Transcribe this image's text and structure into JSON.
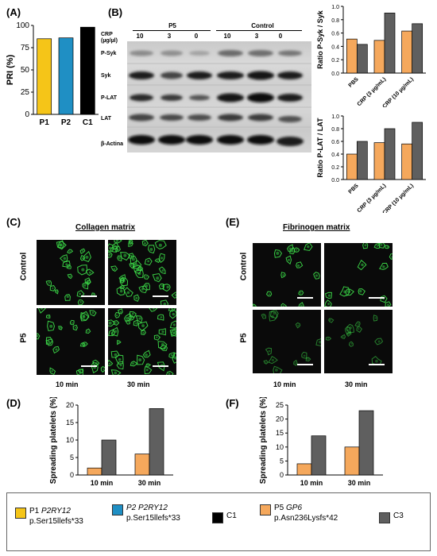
{
  "panels": {
    "A": "(A)",
    "B": "(B)",
    "C": "(C)",
    "D": "(D)",
    "E": "(E)",
    "F": "(F)"
  },
  "western": {
    "group1": "P5",
    "group2": "Control",
    "crp_label_1": "CRP",
    "crp_label_2": "(µg/µl)",
    "lanes": [
      "10",
      "3",
      "0",
      "10",
      "3",
      "0"
    ],
    "rows": [
      "P-Syk",
      "Syk",
      "P-LAT",
      "LAT",
      "β-Actina"
    ]
  },
  "collagen": {
    "title": "Collagen matrix",
    "row_labels": [
      "Control",
      "P5"
    ],
    "time_labels": [
      "10 min",
      "30 min"
    ]
  },
  "fibrinogen": {
    "title": "Fibrinogen matrix",
    "row_labels": [
      "Control",
      "P5"
    ],
    "time_labels": [
      "10 min",
      "30 min"
    ]
  },
  "legend": {
    "p1_line1_a": "P1 ",
    "p1_line1_b": "P2RY12",
    "p1_line2": "p.Ser15llefs*33",
    "p2_line1": "P2 P2RY12",
    "p2_line2": "p.Ser15llefs*33",
    "c1": "C1",
    "p5_line1_a": "P5 ",
    "p5_line1_b": "GP6",
    "p5_line2": "p.Asn236Lysfs*42",
    "c3": "C3",
    "colors": {
      "p1": "#f5c518",
      "p2": "#1f8fc4",
      "c1": "#000000",
      "p5": "#f5a85c",
      "c3": "#5f5f5f"
    }
  },
  "chart_data": [
    {
      "id": "A",
      "type": "bar",
      "ylabel": "PRI (%)",
      "categories": [
        "P1",
        "P2",
        "C1"
      ],
      "values": [
        85,
        86,
        98
      ],
      "colors": [
        "#f5c518",
        "#1f8fc4",
        "#000000"
      ],
      "ylim": [
        0,
        100
      ],
      "yticks": [
        0,
        25,
        50,
        75,
        100
      ]
    },
    {
      "id": "B-top",
      "type": "bar",
      "ylabel": "Ratio P-Syk / Syk",
      "categories": [
        "PBS",
        "CRP (3 µg/mL)",
        "CRP (10 µg/mL)"
      ],
      "series": [
        {
          "values": [
            0.51,
            0.49,
            0.63
          ],
          "color": "#f5a85c"
        },
        {
          "values": [
            0.43,
            0.9,
            0.74
          ],
          "color": "#5f5f5f"
        }
      ],
      "ylim": [
        0,
        1.0
      ],
      "yticks": [
        "0.0",
        "0.2",
        "0.4",
        "0.6",
        "0.8",
        "1.0"
      ]
    },
    {
      "id": "B-bottom",
      "type": "bar",
      "ylabel": "Ratio P-LAT / LAT",
      "categories": [
        "PBS",
        "CRP (3 µg/mL)",
        "CRP (10 µg/mL)"
      ],
      "series": [
        {
          "values": [
            0.4,
            0.58,
            0.56
          ],
          "color": "#f5a85c"
        },
        {
          "values": [
            0.6,
            0.8,
            0.9
          ],
          "color": "#5f5f5f"
        }
      ],
      "ylim": [
        0,
        1.0
      ],
      "yticks": [
        "0.0",
        "0.2",
        "0.4",
        "0.6",
        "0.8",
        "1.0"
      ]
    },
    {
      "id": "D",
      "type": "bar",
      "ylabel": "Spreading platelets (%)",
      "categories": [
        "10 min",
        "30 min"
      ],
      "series": [
        {
          "values": [
            2,
            6
          ],
          "color": "#f5a85c"
        },
        {
          "values": [
            10,
            19
          ],
          "color": "#5f5f5f"
        }
      ],
      "ylim": [
        0,
        20
      ],
      "yticks": [
        "0",
        "5",
        "10",
        "15",
        "20"
      ]
    },
    {
      "id": "F",
      "type": "bar",
      "ylabel": "Spreading platelets (%)",
      "categories": [
        "10 min",
        "30 min"
      ],
      "series": [
        {
          "values": [
            4,
            10
          ],
          "color": "#f5a85c"
        },
        {
          "values": [
            14,
            23
          ],
          "color": "#5f5f5f"
        }
      ],
      "ylim": [
        0,
        25
      ],
      "yticks": [
        "0",
        "5",
        "10",
        "15",
        "20",
        "25"
      ]
    }
  ]
}
